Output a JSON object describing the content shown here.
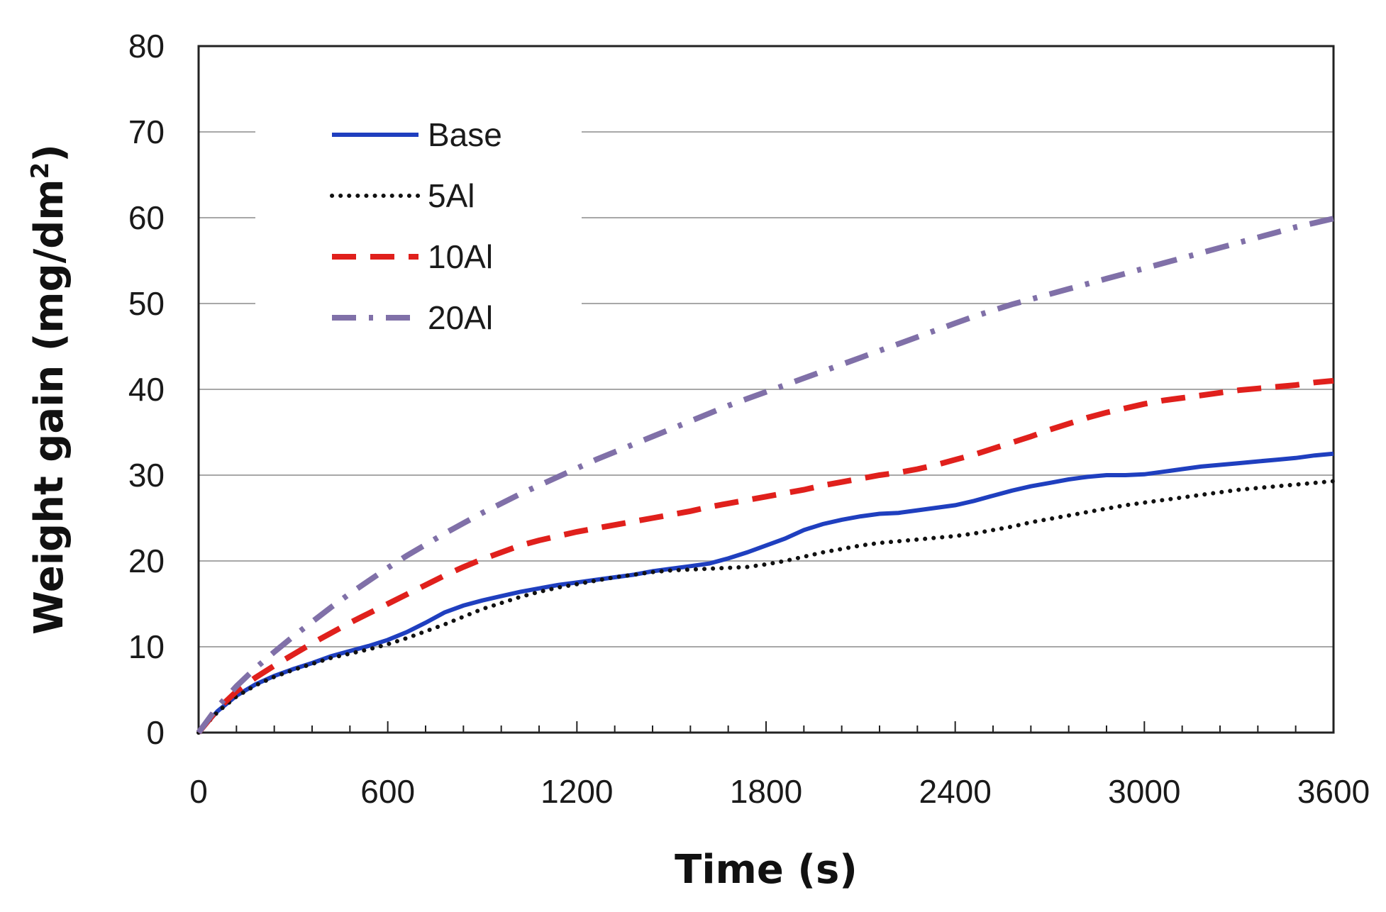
{
  "chart_data": {
    "type": "line",
    "title": "",
    "xlabel": "Time (s)",
    "ylabel_main": "Weight gain (mg/dm",
    "ylabel_sup": "2",
    "ylabel_end": ")",
    "xlim": [
      0,
      3600
    ],
    "ylim": [
      0,
      80
    ],
    "xticks": [
      0,
      600,
      1200,
      1800,
      2400,
      3000,
      3600
    ],
    "xtick_labels": [
      "0",
      "600",
      "1200",
      "1800",
      "2400",
      "3000",
      "3600"
    ],
    "yticks": [
      0,
      10,
      20,
      30,
      40,
      50,
      60,
      70,
      80
    ],
    "ytick_labels": [
      "0",
      "10",
      "20",
      "30",
      "40",
      "50",
      "60",
      "70",
      "80"
    ],
    "minor_x_tick_step": 120,
    "grid": "horizontal",
    "legend_position": "top-left",
    "series": [
      {
        "name": "Base",
        "color": "#1f3fbf",
        "style": "solid",
        "x": [
          0,
          60,
          120,
          180,
          240,
          300,
          360,
          420,
          480,
          540,
          600,
          660,
          720,
          780,
          840,
          900,
          960,
          1020,
          1080,
          1140,
          1200,
          1260,
          1320,
          1380,
          1440,
          1500,
          1560,
          1620,
          1680,
          1740,
          1800,
          1860,
          1920,
          1980,
          2040,
          2100,
          2160,
          2220,
          2280,
          2340,
          2400,
          2460,
          2520,
          2580,
          2640,
          2700,
          2760,
          2820,
          2880,
          2940,
          3000,
          3060,
          3120,
          3180,
          3240,
          3300,
          3360,
          3420,
          3480,
          3540,
          3600
        ],
        "y": [
          0,
          2.5,
          4.3,
          5.6,
          6.6,
          7.4,
          8.1,
          8.9,
          9.5,
          10.1,
          10.8,
          11.7,
          12.8,
          14.0,
          14.8,
          15.4,
          15.9,
          16.4,
          16.8,
          17.2,
          17.5,
          17.8,
          18.1,
          18.4,
          18.8,
          19.1,
          19.4,
          19.7,
          20.3,
          21.0,
          21.8,
          22.6,
          23.6,
          24.3,
          24.8,
          25.2,
          25.5,
          25.6,
          25.9,
          26.2,
          26.5,
          27.0,
          27.6,
          28.2,
          28.7,
          29.1,
          29.5,
          29.8,
          30.0,
          30.0,
          30.1,
          30.4,
          30.7,
          31.0,
          31.2,
          31.4,
          31.6,
          31.8,
          32.0,
          32.3,
          32.5
        ]
      },
      {
        "name": "5Al",
        "color": "#111111",
        "style": "dotted",
        "x": [
          0,
          60,
          120,
          180,
          240,
          300,
          360,
          420,
          480,
          540,
          600,
          660,
          720,
          780,
          840,
          900,
          960,
          1020,
          1080,
          1140,
          1200,
          1260,
          1320,
          1380,
          1440,
          1500,
          1560,
          1620,
          1680,
          1740,
          1800,
          1860,
          1920,
          1980,
          2040,
          2100,
          2160,
          2220,
          2280,
          2340,
          2400,
          2460,
          2520,
          2580,
          2640,
          2700,
          2760,
          2820,
          2880,
          2940,
          3000,
          3060,
          3120,
          3180,
          3240,
          3300,
          3360,
          3420,
          3480,
          3540,
          3600
        ],
        "y": [
          0,
          2.4,
          4.2,
          5.5,
          6.5,
          7.3,
          8.0,
          8.7,
          9.2,
          9.7,
          10.3,
          11.0,
          11.8,
          12.6,
          13.5,
          14.4,
          15.1,
          15.8,
          16.4,
          16.9,
          17.3,
          17.7,
          18.1,
          18.4,
          18.7,
          18.9,
          19.0,
          19.1,
          19.2,
          19.3,
          19.6,
          20.0,
          20.5,
          21.0,
          21.4,
          21.8,
          22.1,
          22.3,
          22.5,
          22.7,
          22.9,
          23.2,
          23.6,
          24.0,
          24.5,
          24.9,
          25.3,
          25.7,
          26.1,
          26.5,
          26.8,
          27.1,
          27.4,
          27.7,
          28.0,
          28.3,
          28.5,
          28.7,
          28.9,
          29.1,
          29.3
        ]
      },
      {
        "name": "10Al",
        "color": "#e0201c",
        "style": "dashed",
        "x": [
          0,
          60,
          120,
          180,
          240,
          300,
          360,
          420,
          480,
          540,
          600,
          660,
          720,
          780,
          840,
          900,
          960,
          1020,
          1080,
          1140,
          1200,
          1260,
          1320,
          1380,
          1440,
          1500,
          1560,
          1620,
          1680,
          1740,
          1800,
          1860,
          1920,
          1980,
          2040,
          2100,
          2160,
          2220,
          2280,
          2340,
          2400,
          2460,
          2520,
          2580,
          2640,
          2700,
          2760,
          2820,
          2880,
          2940,
          3000,
          3060,
          3120,
          3180,
          3240,
          3300,
          3360,
          3420,
          3480,
          3540,
          3600
        ],
        "y": [
          0,
          2.7,
          4.8,
          6.4,
          7.8,
          9.1,
          10.4,
          11.6,
          12.8,
          13.9,
          15.0,
          16.1,
          17.2,
          18.3,
          19.3,
          20.2,
          21.0,
          21.8,
          22.4,
          22.9,
          23.4,
          23.8,
          24.2,
          24.6,
          25.0,
          25.4,
          25.8,
          26.3,
          26.7,
          27.1,
          27.5,
          27.9,
          28.3,
          28.8,
          29.2,
          29.6,
          30.0,
          30.3,
          30.7,
          31.2,
          31.8,
          32.4,
          33.1,
          33.8,
          34.5,
          35.3,
          36.0,
          36.7,
          37.3,
          37.8,
          38.3,
          38.7,
          39.0,
          39.3,
          39.6,
          39.9,
          40.1,
          40.3,
          40.5,
          40.8,
          41.0
        ]
      },
      {
        "name": "20Al",
        "color": "#8070a8",
        "style": "dash-dot",
        "x": [
          0,
          60,
          120,
          180,
          240,
          300,
          360,
          420,
          480,
          540,
          600,
          660,
          720,
          780,
          840,
          900,
          960,
          1020,
          1080,
          1140,
          1200,
          1260,
          1320,
          1380,
          1440,
          1500,
          1560,
          1620,
          1680,
          1740,
          1800,
          1860,
          1920,
          1980,
          2040,
          2100,
          2160,
          2220,
          2280,
          2340,
          2400,
          2460,
          2520,
          2580,
          2640,
          2700,
          2760,
          2820,
          2880,
          2940,
          3000,
          3060,
          3120,
          3180,
          3240,
          3300,
          3360,
          3420,
          3480,
          3540,
          3600
        ],
        "y": [
          0,
          3.0,
          5.4,
          7.5,
          9.4,
          11.2,
          12.9,
          14.6,
          16.2,
          17.7,
          19.2,
          20.6,
          21.9,
          23.2,
          24.4,
          25.6,
          26.7,
          27.8,
          28.8,
          29.8,
          30.8,
          31.8,
          32.7,
          33.6,
          34.5,
          35.4,
          36.3,
          37.2,
          38.1,
          38.9,
          39.7,
          40.5,
          41.3,
          42.1,
          42.9,
          43.7,
          44.5,
          45.3,
          46.1,
          46.9,
          47.7,
          48.5,
          49.2,
          49.9,
          50.5,
          51.1,
          51.7,
          52.3,
          52.9,
          53.5,
          54.1,
          54.7,
          55.3,
          55.9,
          56.5,
          57.1,
          57.7,
          58.3,
          58.9,
          59.4,
          59.9
        ]
      }
    ]
  }
}
